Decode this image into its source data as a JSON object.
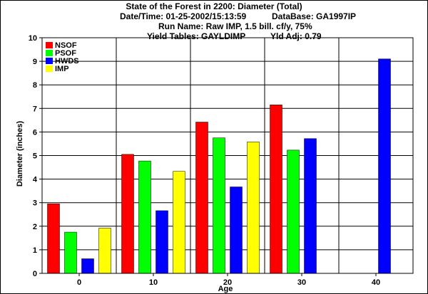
{
  "header": {
    "title": "State of the Forest in 2200: Diameter (Total)",
    "datetime": "Date/Time: 01-25-2002/15:13:59",
    "database": "DataBase: GA1997IP",
    "run_name": "Run Name: Raw IMP, 1.5 bill. cf/y, 75%",
    "yield_tables": "Yield Tables: GAYLDIMP",
    "yld_adj": "Yld Adj: 0.79"
  },
  "chart_data": {
    "type": "bar",
    "title": "State of the Forest in 2200: Diameter (Total)",
    "xlabel": "Age",
    "ylabel": "Diameter (inches)",
    "ylim": [
      0,
      10
    ],
    "yticks": [
      "0",
      "1",
      "2",
      "3",
      "4",
      "5",
      "6",
      "7",
      "8",
      "9",
      "10"
    ],
    "categories": [
      "0",
      "10",
      "20",
      "30",
      "40"
    ],
    "grid": true,
    "legend_position": "top-left",
    "series": [
      {
        "name": "NSOF",
        "color": "#ff0000",
        "values": [
          2.95,
          5.05,
          6.42,
          7.15,
          null
        ]
      },
      {
        "name": "PSOF",
        "color": "#00ff00",
        "values": [
          1.75,
          4.77,
          5.75,
          5.23,
          null
        ]
      },
      {
        "name": "HWDS",
        "color": "#0000ff",
        "values": [
          0.62,
          2.66,
          3.67,
          5.72,
          9.1
        ]
      },
      {
        "name": "IMP",
        "color": "#ffff00",
        "values": [
          1.92,
          4.33,
          5.58,
          null,
          null
        ]
      }
    ]
  }
}
